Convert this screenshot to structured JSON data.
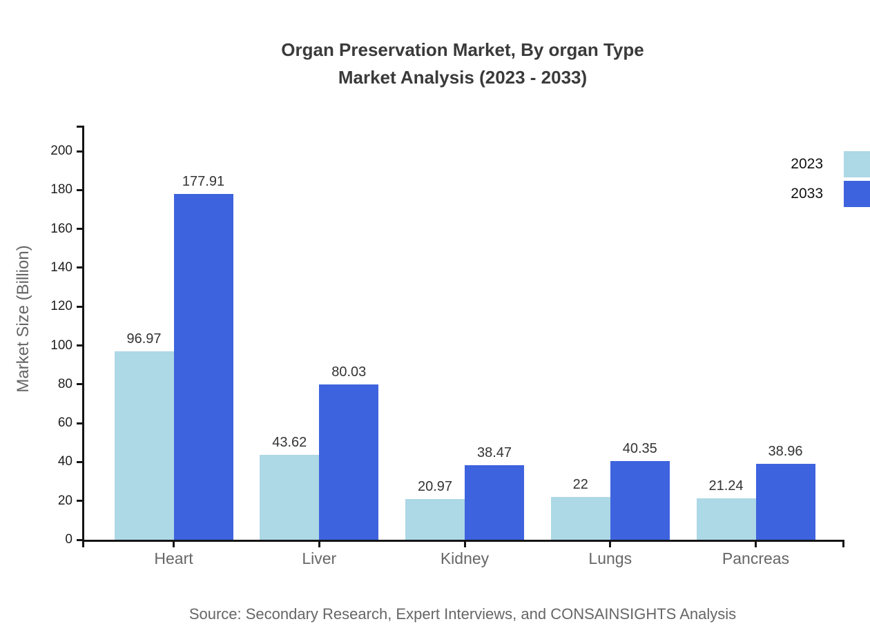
{
  "title": {
    "line1": "Organ Preservation Market, By organ Type",
    "line2": "Market Analysis (2023 - 2033)"
  },
  "source": "Source: Secondary Research, Expert Interviews, and CONSAINSIGHTS Analysis",
  "colors": {
    "series_2023": "#add8e6",
    "series_2033": "#3e63de",
    "axis": "#141414",
    "title_text": "#3a3a3a",
    "muted_text": "#666666",
    "value_label_text": "#333333"
  },
  "legend": [
    {
      "label": "2023",
      "color": "#add8e6"
    },
    {
      "label": "2033",
      "color": "#3e63de"
    }
  ],
  "chart_data": {
    "type": "bar",
    "title": "Organ Preservation Market, By organ Type Market Analysis (2023 - 2033)",
    "categories": [
      "Heart",
      "Liver",
      "Kidney",
      "Lungs",
      "Pancreas"
    ],
    "series": [
      {
        "name": "2023",
        "color": "#add8e6",
        "values": [
          96.97,
          43.62,
          20.97,
          22,
          21.24
        ],
        "labels": [
          "96.97",
          "43.62",
          "20.97",
          "22",
          "21.24"
        ]
      },
      {
        "name": "2033",
        "color": "#3e63de",
        "values": [
          177.91,
          80.03,
          38.47,
          40.35,
          38.96
        ],
        "labels": [
          "177.91",
          "80.03",
          "38.47",
          "40.35",
          "38.96"
        ]
      }
    ],
    "xlabel": "",
    "ylabel": "Market Size (Billion)",
    "ylim": [
      0,
      213
    ],
    "yticks": [
      0,
      20,
      40,
      60,
      80,
      100,
      120,
      140,
      160,
      180,
      200
    ],
    "grid": false,
    "legend_position": "right",
    "data_labels_shown": true
  }
}
